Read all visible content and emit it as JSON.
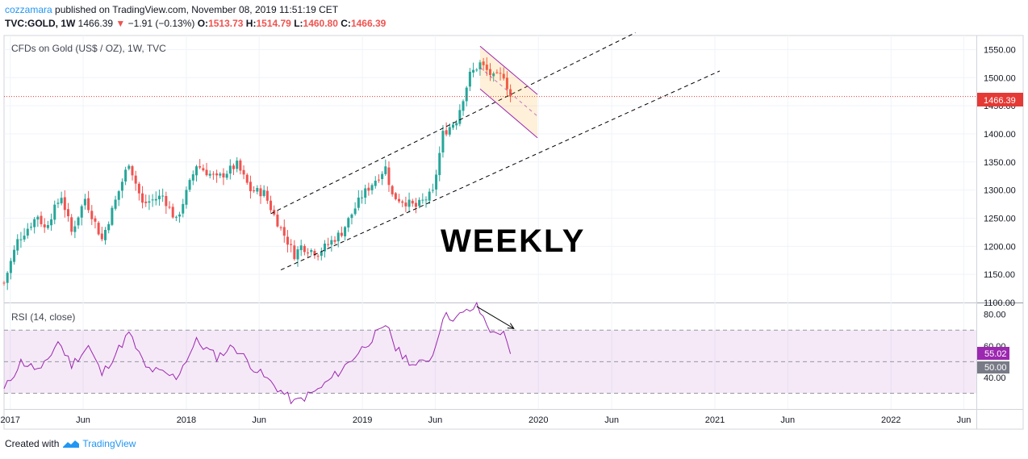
{
  "header": {
    "author": "cozzamara",
    "published_text": "published on TradingView.com, November 08, 2019 11:51:19 CET",
    "symbol": "TVC:GOLD, 1W",
    "last": "1466.39",
    "change_arrow": "▼",
    "change": "−1.91 (−0.13%)",
    "open_label": "O:",
    "open": "1513.73",
    "high_label": "H:",
    "high": "1514.79",
    "low_label": "L:",
    "low": "1460.80",
    "close_label": "C:",
    "close": "1466.39"
  },
  "chart": {
    "legend": "CFDs on Gold (US$ / OZ), 1W, TVC",
    "annotation": "WEEKLY",
    "price_label": "1466.39",
    "rsi_legend": "RSI (14, close)",
    "rsi_value_label": "55.02",
    "rsi_mid_label": "50.00",
    "time_labels": [
      "2017",
      "Jun",
      "2018",
      "Jun",
      "2019",
      "Jun",
      "2020",
      "Jun",
      "2021",
      "Jun",
      "2022",
      "Jun"
    ]
  },
  "footer": {
    "created_with": "Created with",
    "brand": "TradingView"
  },
  "colors": {
    "up": "#26a69a",
    "down": "#ef5350",
    "rsi": "#9c27b0",
    "price_line": "#e53935"
  },
  "chart_data": [
    {
      "type": "candlestick",
      "title": "CFDs on Gold (US$ / OZ), 1W, TVC",
      "interval": "1W",
      "ylim": [
        1100,
        1575
      ],
      "yticks": [
        "1100.00",
        "1150.00",
        "1200.00",
        "1250.00",
        "1300.00",
        "1350.00",
        "1400.00",
        "1450.00",
        "1500.00",
        "1550.00"
      ],
      "last_price": 1466.39,
      "x_range": [
        "2016-12-19",
        "2022-06-27"
      ],
      "x_tick_labels": [
        {
          "date": "2017-01-01",
          "label": "2017"
        },
        {
          "date": "2017-06-01",
          "label": "Jun"
        },
        {
          "date": "2018-01-01",
          "label": "2018"
        },
        {
          "date": "2018-06-01",
          "label": "Jun"
        },
        {
          "date": "2019-01-01",
          "label": "2019"
        },
        {
          "date": "2019-06-01",
          "label": "Jun"
        },
        {
          "date": "2020-01-01",
          "label": "2020"
        },
        {
          "date": "2020-06-01",
          "label": "Jun"
        },
        {
          "date": "2021-01-01",
          "label": "2021"
        },
        {
          "date": "2021-06-01",
          "label": "Jun"
        },
        {
          "date": "2022-01-01",
          "label": "2022"
        },
        {
          "date": "2022-06-01",
          "label": "Jun"
        }
      ],
      "weekly_close_anchors": [
        {
          "date": "2016-12-19",
          "close": 1135
        },
        {
          "date": "2017-01-16",
          "close": 1210
        },
        {
          "date": "2017-02-27",
          "close": 1255
        },
        {
          "date": "2017-03-13",
          "close": 1232
        },
        {
          "date": "2017-04-17",
          "close": 1290
        },
        {
          "date": "2017-05-08",
          "close": 1225
        },
        {
          "date": "2017-06-05",
          "close": 1285
        },
        {
          "date": "2017-07-10",
          "close": 1212
        },
        {
          "date": "2017-09-04",
          "close": 1350
        },
        {
          "date": "2017-10-02",
          "close": 1275
        },
        {
          "date": "2017-11-13",
          "close": 1290
        },
        {
          "date": "2017-12-11",
          "close": 1245
        },
        {
          "date": "2018-01-22",
          "close": 1345
        },
        {
          "date": "2018-03-05",
          "close": 1320
        },
        {
          "date": "2018-04-16",
          "close": 1345
        },
        {
          "date": "2018-05-14",
          "close": 1300
        },
        {
          "date": "2018-06-11",
          "close": 1295
        },
        {
          "date": "2018-07-02",
          "close": 1255
        },
        {
          "date": "2018-08-13",
          "close": 1185
        },
        {
          "date": "2018-08-27",
          "close": 1200
        },
        {
          "date": "2018-10-01",
          "close": 1188
        },
        {
          "date": "2018-11-19",
          "close": 1225
        },
        {
          "date": "2018-12-31",
          "close": 1290
        },
        {
          "date": "2019-02-18",
          "close": 1340
        },
        {
          "date": "2019-03-04",
          "close": 1290
        },
        {
          "date": "2019-04-22",
          "close": 1270
        },
        {
          "date": "2019-05-27",
          "close": 1295
        },
        {
          "date": "2019-06-17",
          "close": 1400
        },
        {
          "date": "2019-07-15",
          "close": 1425
        },
        {
          "date": "2019-08-12",
          "close": 1505
        },
        {
          "date": "2019-09-02",
          "close": 1525
        },
        {
          "date": "2019-09-30",
          "close": 1500
        },
        {
          "date": "2019-10-21",
          "close": 1505
        },
        {
          "date": "2019-11-04",
          "close": 1466.39
        }
      ],
      "drawings": [
        {
          "kind": "trend_line",
          "style": "dashed",
          "from": {
            "date": "2018-06-25",
            "price": 1258
          },
          "to": {
            "date": "2020-07-20",
            "price": 1580
          }
        },
        {
          "kind": "trend_line",
          "style": "dashed",
          "from": {
            "date": "2018-07-16",
            "price": 1158
          },
          "to": {
            "date": "2021-01-11",
            "price": 1512
          }
        },
        {
          "kind": "falling_channel",
          "color": "#9c27b0",
          "upper": [
            {
              "date": "2019-09-02",
              "price": 1556
            },
            {
              "date": "2019-12-30",
              "price": 1470
            }
          ],
          "lower": [
            {
              "date": "2019-09-02",
              "price": 1480
            },
            {
              "date": "2019-12-30",
              "price": 1393
            }
          ]
        }
      ]
    },
    {
      "type": "line",
      "title": "RSI (14, close)",
      "ylim": [
        20,
        87
      ],
      "yticks": [
        "40.00",
        "60.00",
        "80.00"
      ],
      "band": [
        30,
        70
      ],
      "midline": 50,
      "last_value": 55.02,
      "anchors": [
        {
          "date": "2016-12-19",
          "value": 32
        },
        {
          "date": "2017-01-23",
          "value": 50
        },
        {
          "date": "2017-03-06",
          "value": 44
        },
        {
          "date": "2017-04-10",
          "value": 63
        },
        {
          "date": "2017-05-08",
          "value": 48
        },
        {
          "date": "2017-06-12",
          "value": 60
        },
        {
          "date": "2017-07-10",
          "value": 42
        },
        {
          "date": "2017-09-04",
          "value": 68
        },
        {
          "date": "2017-10-09",
          "value": 46
        },
        {
          "date": "2017-12-11",
          "value": 40
        },
        {
          "date": "2018-01-22",
          "value": 63
        },
        {
          "date": "2018-03-05",
          "value": 53
        },
        {
          "date": "2018-04-09",
          "value": 60
        },
        {
          "date": "2018-05-21",
          "value": 46
        },
        {
          "date": "2018-08-13",
          "value": 24
        },
        {
          "date": "2018-10-01",
          "value": 32
        },
        {
          "date": "2018-11-19",
          "value": 45
        },
        {
          "date": "2019-01-28",
          "value": 67
        },
        {
          "date": "2019-02-25",
          "value": 72
        },
        {
          "date": "2019-03-11",
          "value": 58
        },
        {
          "date": "2019-04-22",
          "value": 47
        },
        {
          "date": "2019-05-27",
          "value": 54
        },
        {
          "date": "2019-06-17",
          "value": 79
        },
        {
          "date": "2019-07-15",
          "value": 78
        },
        {
          "date": "2019-08-26",
          "value": 85
        },
        {
          "date": "2019-09-30",
          "value": 67
        },
        {
          "date": "2019-10-21",
          "value": 70
        },
        {
          "date": "2019-11-04",
          "value": 55
        }
      ],
      "drawings": [
        {
          "kind": "arrow",
          "from": {
            "date": "2019-08-26",
            "value": 85
          },
          "to": {
            "date": "2019-11-11",
            "value": 71
          }
        }
      ]
    }
  ]
}
